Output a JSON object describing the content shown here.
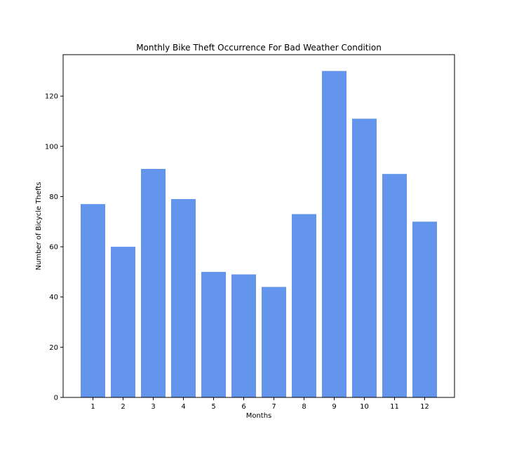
{
  "chart_data": {
    "type": "bar",
    "title": "Monthly Bike Theft Occurrence For Bad Weather Condition",
    "xlabel": "Months",
    "ylabel": "Number of Bicycle Thefts",
    "categories": [
      "1",
      "2",
      "3",
      "4",
      "5",
      "6",
      "7",
      "8",
      "9",
      "10",
      "11",
      "12"
    ],
    "values": [
      77,
      60,
      91,
      79,
      50,
      49,
      44,
      73,
      130,
      111,
      89,
      70
    ],
    "yticks": [
      0,
      20,
      40,
      60,
      80,
      100,
      120
    ],
    "ylim": [
      0,
      136.5
    ],
    "grid": false,
    "colors": {
      "bar": "#6495ed",
      "axis": "#000000",
      "background": "#ffffff"
    }
  }
}
